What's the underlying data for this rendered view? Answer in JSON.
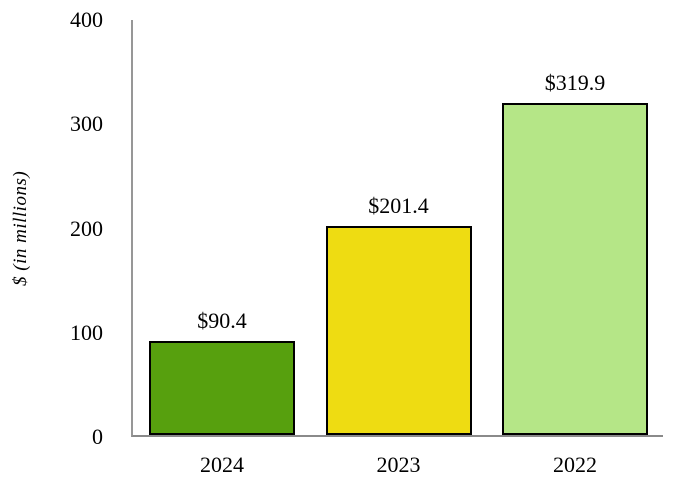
{
  "chart": {
    "y_axis_title": "$ (in millions)"
  },
  "chart_data": {
    "type": "bar",
    "title": "",
    "categories": [
      "2024",
      "2023",
      "2022"
    ],
    "values": [
      90.4,
      201.4,
      319.9
    ],
    "value_labels": [
      "$90.4",
      "$201.4",
      "$319.9"
    ],
    "bar_colors": [
      "#57A00E",
      "#EEDC12",
      "#B5E687"
    ],
    "bar_border_color": "#000000",
    "axis_color": "#909090",
    "xlabel": "",
    "ylabel": "$ (in millions)",
    "ylim": [
      0,
      400
    ],
    "yticks": [
      0,
      100,
      200,
      300,
      400
    ],
    "grid": false,
    "legend": false
  }
}
